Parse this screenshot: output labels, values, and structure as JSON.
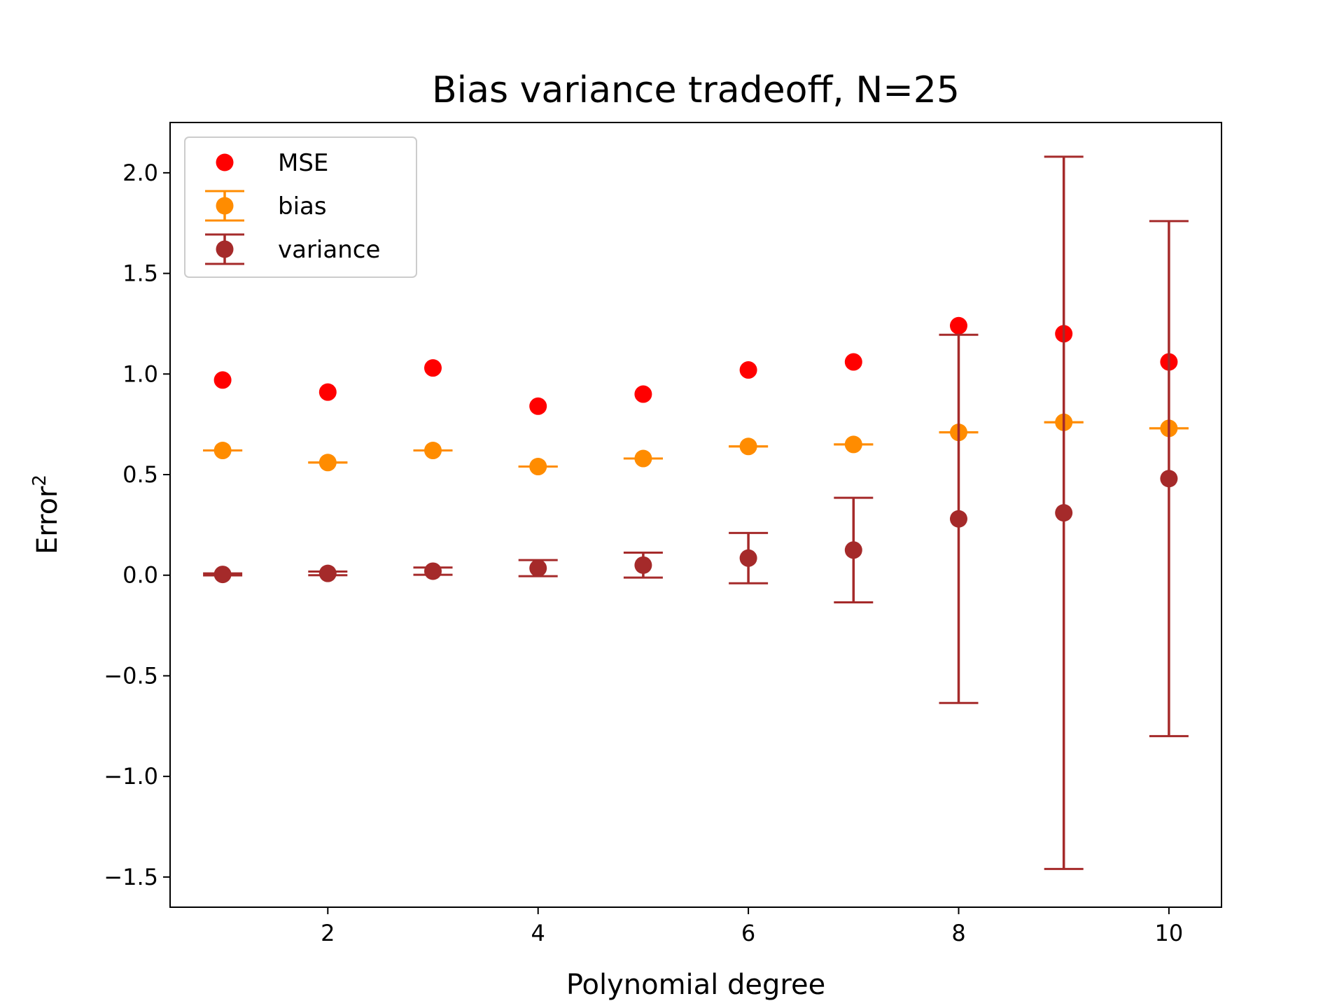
{
  "chart_data": {
    "type": "scatter",
    "title": "Bias variance tradeoff, N=25",
    "xlabel": "Polynomial degree",
    "ylabel_base": "Error",
    "ylabel_sup": "2",
    "xlim": [
      0.5,
      10.5
    ],
    "ylim": [
      -1.65,
      2.25
    ],
    "xticks": [
      2,
      4,
      6,
      8,
      10
    ],
    "xtick_labels": [
      "2",
      "4",
      "6",
      "8",
      "10"
    ],
    "yticks": [
      -1.5,
      -1.0,
      -0.5,
      0.0,
      0.5,
      1.0,
      1.5,
      2.0
    ],
    "ytick_labels": [
      "−1.5",
      "−1.0",
      "−0.5",
      "0.0",
      "0.5",
      "1.0",
      "1.5",
      "2.0"
    ],
    "grid": false,
    "legend_position": "top-left",
    "x": [
      1,
      2,
      3,
      4,
      5,
      6,
      7,
      8,
      9,
      10
    ],
    "series": [
      {
        "name": "MSE",
        "color": "#ff0000",
        "values": [
          0.97,
          0.91,
          1.03,
          0.84,
          0.9,
          1.02,
          1.06,
          1.24,
          1.2,
          1.06
        ],
        "errors": null
      },
      {
        "name": "bias",
        "color": "#ff8c00",
        "values": [
          0.62,
          0.56,
          0.62,
          0.54,
          0.58,
          0.64,
          0.65,
          0.71,
          0.76,
          0.73
        ],
        "errors": [
          0.0,
          0.0,
          0.0,
          0.0,
          0.0,
          0.0,
          0.0,
          0.0,
          0.0,
          0.0
        ]
      },
      {
        "name": "variance",
        "color": "#a52a2a",
        "values": [
          0.004,
          0.009,
          0.02,
          0.035,
          0.05,
          0.085,
          0.125,
          0.28,
          0.31,
          0.48
        ],
        "errors": [
          0.005,
          0.009,
          0.018,
          0.04,
          0.062,
          0.125,
          0.26,
          0.915,
          1.77,
          1.28
        ]
      }
    ]
  }
}
